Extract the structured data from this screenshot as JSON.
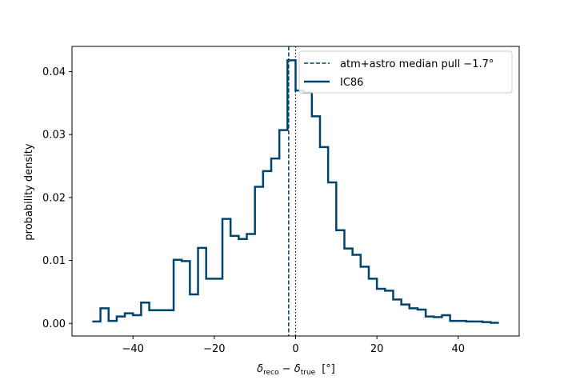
{
  "chart_data": {
    "type": "step-histogram",
    "xlabel": "δreco − δtrue [°]",
    "xlabel_parts": {
      "delta": "δ",
      "sub1": "reco",
      "minus": " − ",
      "sub2": "true",
      "unit": "[°]"
    },
    "ylabel": "probability density",
    "xlim": [
      -55,
      55
    ],
    "ylim": [
      -0.002,
      0.044
    ],
    "xticks": [
      -40,
      -20,
      0,
      20,
      40
    ],
    "xtick_labels": [
      "−40",
      "−20",
      "0",
      "20",
      "40"
    ],
    "yticks": [
      0.0,
      0.01,
      0.02,
      0.03,
      0.04
    ],
    "ytick_labels": [
      "0.00",
      "0.01",
      "0.02",
      "0.03",
      "0.04"
    ],
    "grid": false,
    "legend_position": "top-right",
    "colors": {
      "series": "#00446b"
    },
    "series": [
      {
        "name": "IC86",
        "bin_edges": [
          -50,
          -48,
          -46,
          -44,
          -42,
          -40,
          -38,
          -36,
          -34,
          -32,
          -30,
          -28,
          -26,
          -24,
          -22,
          -20,
          -18,
          -16,
          -14,
          -12,
          -10,
          -8,
          -6,
          -4,
          -2,
          0,
          2,
          4,
          6,
          8,
          10,
          12,
          14,
          16,
          18,
          20,
          22,
          24,
          26,
          28,
          30,
          32,
          34,
          36,
          38,
          40,
          42,
          44,
          46,
          48,
          50
        ],
        "values": [
          0.0003,
          0.0024,
          0.0004,
          0.0011,
          0.0016,
          0.0013,
          0.0033,
          0.0021,
          0.0021,
          0.0021,
          0.0101,
          0.0099,
          0.0046,
          0.012,
          0.0071,
          0.0071,
          0.0166,
          0.0139,
          0.0134,
          0.0142,
          0.0217,
          0.0242,
          0.0262,
          0.0307,
          0.0418,
          0.037,
          0.0367,
          0.0329,
          0.028,
          0.0224,
          0.0148,
          0.0119,
          0.0109,
          0.009,
          0.0071,
          0.0055,
          0.0052,
          0.0038,
          0.003,
          0.0024,
          0.0022,
          0.0011,
          0.001,
          0.0013,
          0.0004,
          0.0004,
          0.0003,
          0.0003,
          0.0002,
          0.0001
        ]
      }
    ],
    "vlines": [
      {
        "name": "atm+astro median pull",
        "x": -1.7,
        "style": "dashed",
        "legend": "atm+astro median pull −1.7°"
      },
      {
        "x": 0,
        "style": "dotted"
      }
    ]
  }
}
